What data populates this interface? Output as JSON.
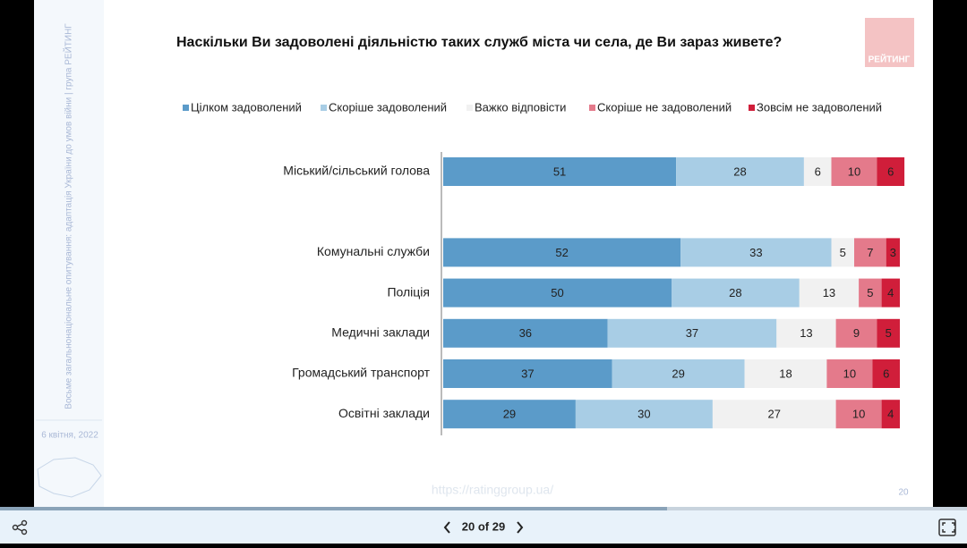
{
  "slide": {
    "side_note": "Восьме загальнонаціональне опитування: адаптація України до умов війни | група РЕЙТИНГ",
    "date": "6 квітня, 2022",
    "logo": "РЕЙТИНГ",
    "url": "https://ratinggroup.ua/",
    "page_number": "20"
  },
  "viewer": {
    "page_indicator": "20 of 29"
  },
  "chart_data": {
    "type": "stacked-bar-horizontal",
    "title": "Наскільки Ви задоволені діяльністю таких служб міста чи села, де Ви зараз живете?",
    "categories": [
      "Міський/сільський голова",
      null,
      "Комунальні служби",
      "Поліція",
      "Медичні заклади",
      "Громадський транспорт",
      "Освітні заклади"
    ],
    "xlim": [
      0,
      100
    ],
    "series": [
      {
        "name": "Цілком задоволений",
        "color": "#5b9bc9",
        "values": [
          51,
          null,
          52,
          50,
          36,
          37,
          29
        ]
      },
      {
        "name": "Скоріше задоволений",
        "color": "#a8cde5",
        "values": [
          28,
          null,
          33,
          28,
          37,
          29,
          30
        ]
      },
      {
        "name": "Важко відповісти",
        "color": "#f1f1f1",
        "values": [
          6,
          null,
          5,
          13,
          13,
          18,
          27
        ]
      },
      {
        "name": "Скоріше не задоволений",
        "color": "#e47a8b",
        "values": [
          10,
          null,
          7,
          5,
          9,
          10,
          10
        ]
      },
      {
        "name": "Зовсім не задоволений",
        "color": "#d01e3a",
        "values": [
          6,
          null,
          3,
          4,
          5,
          6,
          4
        ]
      }
    ]
  }
}
